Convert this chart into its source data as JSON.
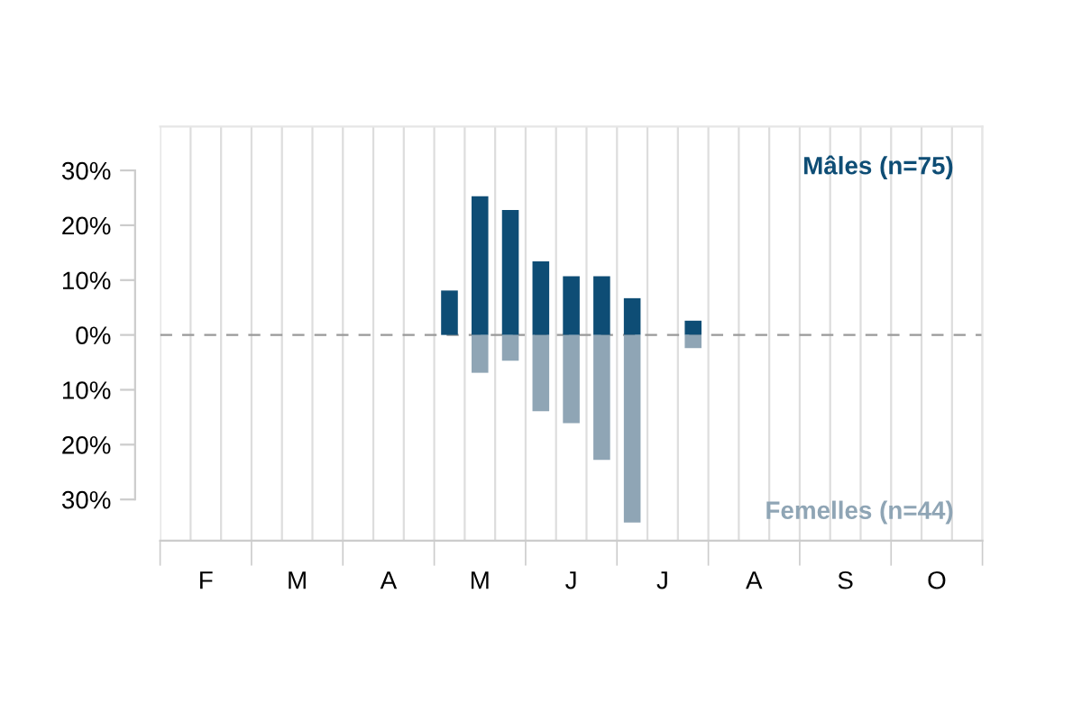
{
  "chart_data": {
    "type": "bar",
    "categories": [
      null,
      "F",
      null,
      null,
      "M",
      null,
      null,
      "A",
      null,
      null,
      "M",
      null,
      null,
      "J",
      null,
      null,
      "J",
      null,
      null,
      "A",
      null,
      null,
      "S",
      null,
      null,
      "O",
      null
    ],
    "series": [
      {
        "name": "Mâles (n=75)",
        "color": "#0e4d75",
        "values": [
          null,
          null,
          null,
          null,
          null,
          null,
          null,
          null,
          null,
          8.1,
          25.3,
          22.8,
          13.4,
          10.7,
          10.7,
          6.7,
          null,
          2.6,
          null,
          null,
          null,
          null,
          null,
          null,
          null,
          null,
          null
        ]
      },
      {
        "name": "Femelles (n=44)",
        "color": "#8fa5b5",
        "values": [
          null,
          null,
          null,
          null,
          null,
          null,
          null,
          null,
          null,
          null,
          -6.9,
          -4.7,
          -13.9,
          -16.1,
          -22.8,
          -34.2,
          null,
          -2.4,
          null,
          null,
          null,
          null,
          null,
          null,
          null,
          null,
          null
        ]
      }
    ],
    "ylim": [
      -37.5,
      38
    ],
    "yticks": [
      {
        "value": 30,
        "label": "30%"
      },
      {
        "value": 20,
        "label": "20%"
      },
      {
        "value": 10,
        "label": "10%"
      },
      {
        "value": 0,
        "label": "0%"
      },
      {
        "value": -10,
        "label": "10%"
      },
      {
        "value": -20,
        "label": "20%"
      },
      {
        "value": -30,
        "label": "30%"
      }
    ],
    "ref_lines": [
      {
        "axis": "y",
        "value": 0,
        "label": null,
        "color": "#999999",
        "line_style": "dashed"
      }
    ],
    "grid": "x",
    "legend": false
  }
}
